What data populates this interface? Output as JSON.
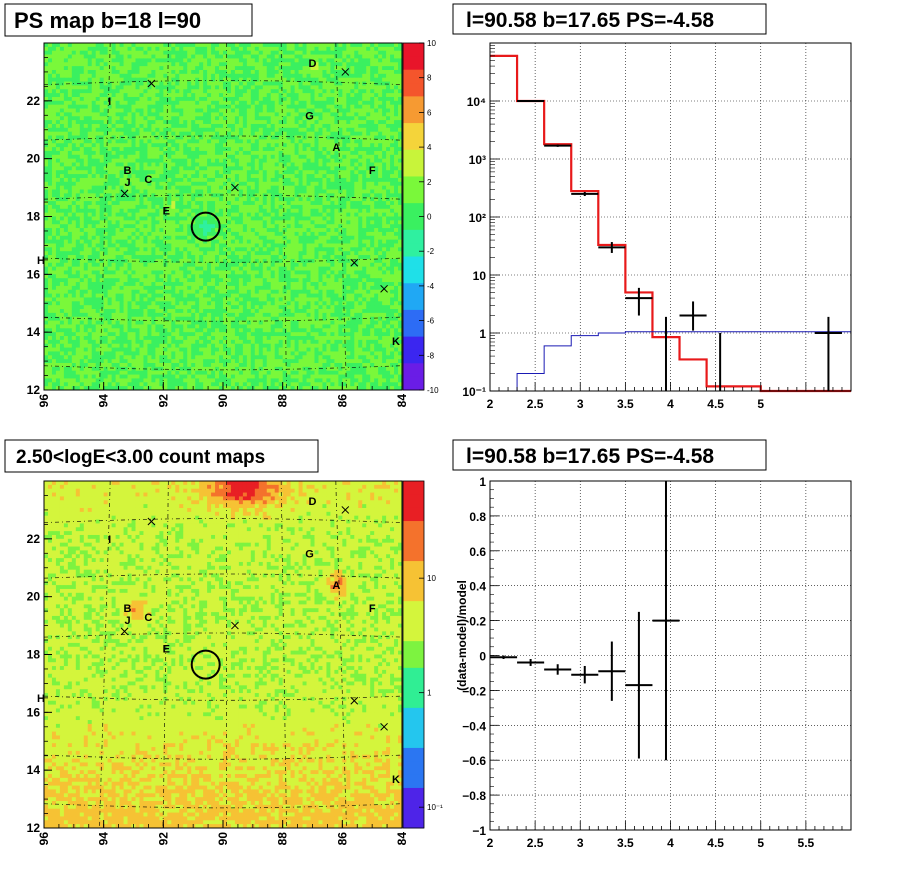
{
  "panels": {
    "ps_map": {
      "title": "PS map b=18 l=90",
      "x_ticks": [
        "96",
        "94",
        "92",
        "90",
        "88",
        "86",
        "84"
      ],
      "y_ticks": [
        "12",
        "14",
        "16",
        "18",
        "20",
        "22"
      ],
      "colorbar_ticks": [
        "10",
        "8",
        "6",
        "4",
        "2",
        "0",
        "-2",
        "-4",
        "-6",
        "-8",
        "-10"
      ]
    },
    "count_map": {
      "title": "2.50<logE<3.00 count maps",
      "x_ticks": [
        "96",
        "94",
        "92",
        "90",
        "88",
        "86",
        "84"
      ],
      "y_ticks": [
        "12",
        "14",
        "16",
        "18",
        "20",
        "22"
      ],
      "colorbar_ticks": [
        "10",
        "1",
        "10⁻¹"
      ]
    },
    "spectrum": {
      "title": "l=90.58 b=17.65 PS=-4.58"
    },
    "residual": {
      "title": "l=90.58 b=17.65 PS=-4.58"
    }
  },
  "sources": [
    {
      "label": "D",
      "l": 87.0,
      "b": 23.3
    },
    {
      "label": "I",
      "l": 93.8,
      "b": 22.0
    },
    {
      "label": "G",
      "l": 87.1,
      "b": 21.5
    },
    {
      "label": "A",
      "l": 86.2,
      "b": 20.4
    },
    {
      "label": "F",
      "l": 85.0,
      "b": 19.6
    },
    {
      "label": "B",
      "l": 93.2,
      "b": 19.6
    },
    {
      "label": "J",
      "l": 93.2,
      "b": 19.2
    },
    {
      "label": "C",
      "l": 92.5,
      "b": 19.3
    },
    {
      "label": "E",
      "l": 91.9,
      "b": 18.2
    },
    {
      "label": "H",
      "l": 96.1,
      "b": 16.5
    },
    {
      "label": "K",
      "l": 84.0,
      "b": 13.7
    }
  ],
  "crosses": [
    [
      92.4,
      22.6
    ],
    [
      85.9,
      23.0
    ],
    [
      93.3,
      18.8
    ],
    [
      89.6,
      19.0
    ],
    [
      85.6,
      16.4
    ],
    [
      84.6,
      15.5
    ]
  ],
  "target": {
    "l": 90.58,
    "b": 17.65
  },
  "chart_data": [
    {
      "type": "heatmap",
      "title": "PS map b=18 l=90",
      "xlabel": "",
      "ylabel": "",
      "xlim": [
        96,
        84
      ],
      "ylim": [
        12,
        24
      ],
      "zlim": [
        -10,
        10
      ],
      "colormap": [
        "#6a1de6",
        "#3b26f0",
        "#2d6cf5",
        "#20a8f4",
        "#1fe0e8",
        "#2ff0a0",
        "#3af060",
        "#7af83a",
        "#c8f43a",
        "#f4d43a",
        "#f69a32",
        "#f4552c",
        "#e8152a"
      ]
    },
    {
      "type": "heatmap",
      "title": "2.50<logE<3.00 count maps",
      "xlabel": "",
      "ylabel": "",
      "xlim": [
        96,
        84
      ],
      "ylim": [
        12,
        24
      ],
      "zscale": "log",
      "colormap": [
        "#4e24e8",
        "#2b76f2",
        "#24c6ee",
        "#30ee94",
        "#7df340",
        "#d4f53c",
        "#f6c234",
        "#f4722c",
        "#e81f24"
      ]
    },
    {
      "type": "line",
      "title": "l=90.58 b=17.65 PS=-4.58",
      "xlabel": "",
      "ylabel": "",
      "xlim": [
        2,
        6
      ],
      "ylim": [
        0.1,
        100000
      ],
      "yscale": "log",
      "grid": true,
      "bin_edges": [
        2.0,
        2.3,
        2.6,
        2.9,
        3.2,
        3.5,
        3.8,
        4.1,
        4.4,
        4.7,
        5.0,
        5.3,
        5.6,
        6.0
      ],
      "series": [
        {
          "color": "#e8191a",
          "style": "histogram",
          "values": [
            60000,
            10000,
            1800,
            280,
            33,
            5,
            0.85,
            0.35,
            0.12,
            0.12,
            0.1,
            0.1,
            0.1
          ]
        },
        {
          "color": "#1a1ab4",
          "style": "histogram",
          "values": [
            0.1,
            0.2,
            0.6,
            0.9,
            1.0,
            1.05,
            1.05,
            1.05,
            1.05,
            1.05,
            1.05,
            1.05,
            1.05
          ]
        },
        {
          "color": "#000000",
          "style": "errorbars",
          "points": [
            {
              "x": 2.45,
              "xerr": 0.15,
              "y": 10000,
              "ylo": 9800,
              "yhi": 10200
            },
            {
              "x": 2.75,
              "xerr": 0.15,
              "y": 1700,
              "ylo": 1620,
              "yhi": 1780
            },
            {
              "x": 3.05,
              "xerr": 0.15,
              "y": 250,
              "ylo": 230,
              "yhi": 270
            },
            {
              "x": 3.35,
              "xerr": 0.15,
              "y": 30,
              "ylo": 24,
              "yhi": 37
            },
            {
              "x": 3.65,
              "xerr": 0.15,
              "y": 4,
              "ylo": 2,
              "yhi": 6
            },
            {
              "x": 4.25,
              "xerr": 0.15,
              "y": 2,
              "ylo": 1.1,
              "yhi": 3.5
            },
            {
              "x": 3.95,
              "xerr": 0,
              "y": 0.1,
              "ylo": 0.1,
              "yhi": 1.9
            },
            {
              "x": 4.55,
              "xerr": 0,
              "y": 0.1,
              "ylo": 0.1,
              "yhi": 1.0
            },
            {
              "x": 5.75,
              "xerr": 0.15,
              "y": 1.0,
              "ylo": 0.1,
              "yhi": 1.9
            }
          ]
        }
      ]
    },
    {
      "type": "scatter",
      "title": "l=90.58 b=17.65 PS=-4.58",
      "xlabel": "",
      "ylabel": "(data-model)/model",
      "xlim": [
        2,
        6
      ],
      "ylim": [
        -1,
        1
      ],
      "grid": true,
      "series": [
        {
          "color": "#000000",
          "style": "errorbars",
          "points": [
            {
              "x": 2.15,
              "xerr": 0.15,
              "y": -0.01,
              "yerr": 0.01
            },
            {
              "x": 2.45,
              "xerr": 0.15,
              "y": -0.04,
              "yerr": 0.02
            },
            {
              "x": 2.75,
              "xerr": 0.15,
              "y": -0.08,
              "yerr": 0.03
            },
            {
              "x": 3.05,
              "xerr": 0.15,
              "y": -0.11,
              "yerr": 0.05
            },
            {
              "x": 3.35,
              "xerr": 0.15,
              "y": -0.09,
              "yerr": 0.17
            },
            {
              "x": 3.65,
              "xerr": 0.15,
              "y": -0.17,
              "yerr": 0.42
            },
            {
              "x": 3.95,
              "xerr": 0.15,
              "y": 0.2,
              "yerr": 0.8
            }
          ]
        }
      ]
    }
  ]
}
